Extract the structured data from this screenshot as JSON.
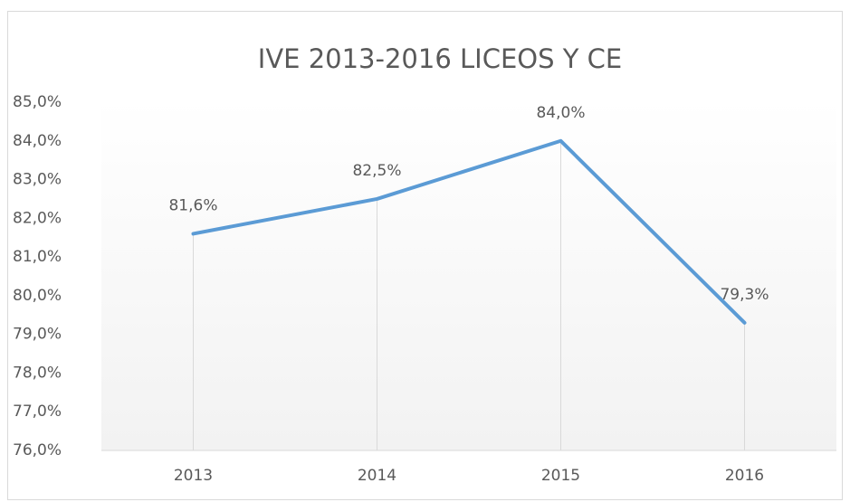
{
  "chart_data": {
    "type": "line",
    "title": "IVE 2013-2016 LICEOS Y CE",
    "categories": [
      "2013",
      "2014",
      "2015",
      "2016"
    ],
    "values": [
      81.6,
      82.5,
      84.0,
      79.3
    ],
    "value_labels": [
      "81,6%",
      "82,5%",
      "84,0%",
      "79,3%"
    ],
    "color": "#5b9bd5",
    "ylim": [
      76,
      85
    ],
    "yticks": [
      {
        "value": 76,
        "label": "76,0%"
      },
      {
        "value": 77,
        "label": "77,0%"
      },
      {
        "value": 78,
        "label": "78,0%"
      },
      {
        "value": 79,
        "label": "79,0%"
      },
      {
        "value": 80,
        "label": "80,0%"
      },
      {
        "value": 81,
        "label": "81,0%"
      },
      {
        "value": 82,
        "label": "82,0%"
      },
      {
        "value": 83,
        "label": "83,0%"
      },
      {
        "value": 84,
        "label": "84,0%"
      },
      {
        "value": 85,
        "label": "85,0%"
      }
    ],
    "drop_lines": true
  }
}
